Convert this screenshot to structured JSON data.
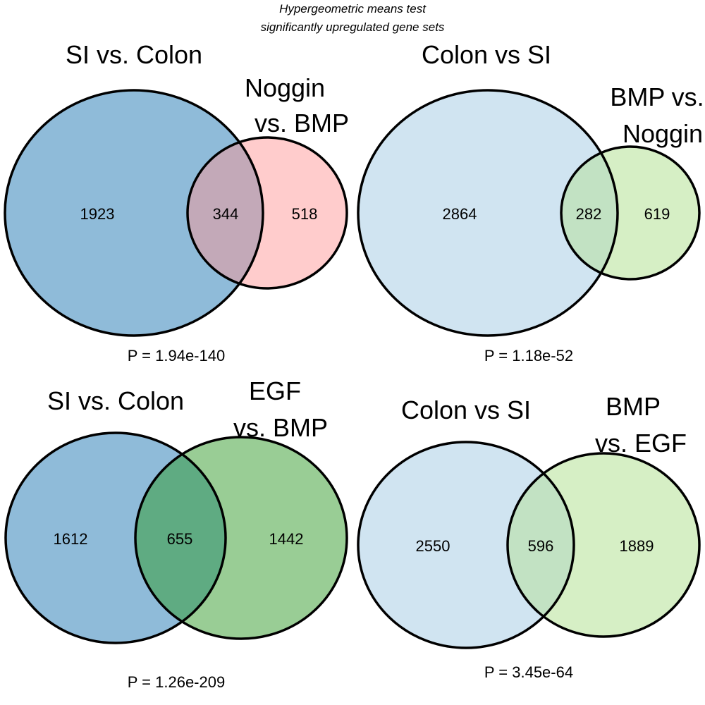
{
  "title": {
    "line1": "Hypergeometric means test",
    "line2": "significantly upregulated gene sets"
  },
  "colors": {
    "blue": "#8fbbd9",
    "pink": "#ffcccc",
    "blue_pink_overlap": "#c3a9b8",
    "light_blue": "#d0e4f1",
    "light_green": "#d6efc5",
    "light_overlap": "#c2e2c3",
    "green": "#99cd95",
    "dark_overlap": "#5fab82"
  },
  "venns": [
    {
      "left_label": "SI vs. Colon",
      "right_label_1": "Noggin",
      "right_label_2": "vs. BMP",
      "left_only": "1923",
      "overlap": "344",
      "right_only": "518",
      "p_value": "P =  1.94e-140"
    },
    {
      "left_label": "Colon vs SI",
      "right_label_1": "BMP vs.",
      "right_label_2": "Noggin",
      "left_only": "2864",
      "overlap": "282",
      "right_only": "619",
      "p_value": "P =  1.18e-52"
    },
    {
      "left_label": "SI vs. Colon",
      "right_label_1": "EGF",
      "right_label_2": "vs. BMP",
      "left_only": "1612",
      "overlap": "655",
      "right_only": "1442",
      "p_value": "P =  1.26e-209"
    },
    {
      "left_label": "Colon vs SI",
      "right_label_1": "BMP",
      "right_label_2": "vs. EGF",
      "left_only": "2550",
      "overlap": "596",
      "right_only": "1889",
      "p_value": "P =  3.45e-64"
    }
  ]
}
